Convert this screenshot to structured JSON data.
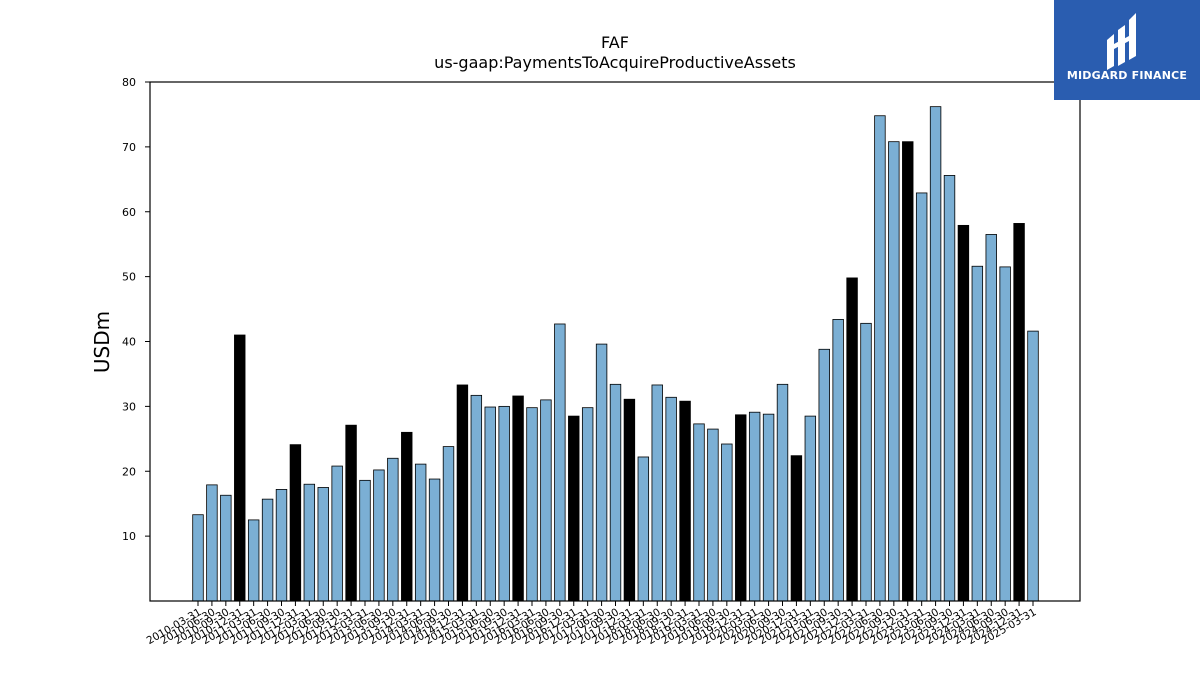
{
  "chart_data": {
    "type": "bar",
    "title": "FAF",
    "subtitle": "us-gaap:PaymentsToAcquireProductiveAssets",
    "ylabel": "USDm",
    "xlabel": "",
    "ylim": [
      0,
      80
    ],
    "yticks": [
      10,
      20,
      30,
      40,
      50,
      60,
      70,
      80
    ],
    "grid": false,
    "categories": [
      "2010-03-31",
      "2010-06-30",
      "2010-09-30",
      "2010-12-31",
      "2011-03-31",
      "2011-06-30",
      "2011-09-30",
      "2011-12-31",
      "2012-03-31",
      "2012-06-30",
      "2012-09-30",
      "2012-12-31",
      "2013-03-31",
      "2013-06-30",
      "2013-09-30",
      "2013-12-31",
      "2014-03-31",
      "2014-06-30",
      "2014-09-30",
      "2014-12-31",
      "2015-03-31",
      "2015-06-30",
      "2015-09-30",
      "2015-12-31",
      "2016-03-31",
      "2016-06-30",
      "2016-09-30",
      "2016-12-31",
      "2017-03-31",
      "2017-06-30",
      "2017-09-30",
      "2017-12-31",
      "2018-03-31",
      "2018-06-30",
      "2018-09-30",
      "2018-12-31",
      "2019-03-31",
      "2019-06-30",
      "2019-09-30",
      "2019-12-31",
      "2020-03-31",
      "2020-06-30",
      "2020-09-30",
      "2020-12-31",
      "2021-03-31",
      "2021-06-30",
      "2021-09-30",
      "2021-12-31",
      "2022-03-31",
      "2022-06-30",
      "2022-09-30",
      "2022-12-31",
      "2023-03-31",
      "2023-06-30",
      "2023-09-30",
      "2023-12-31",
      "2024-03-31",
      "2024-06-30",
      "2024-09-30",
      "2024-12-31",
      "2025-03-31"
    ],
    "values": [
      13.3,
      17.9,
      16.3,
      41.0,
      12.5,
      15.7,
      17.2,
      24.1,
      18.0,
      17.5,
      20.8,
      27.1,
      18.6,
      20.2,
      22.0,
      26.0,
      21.1,
      18.8,
      23.8,
      33.3,
      31.7,
      29.9,
      30.0,
      31.6,
      29.8,
      31.0,
      42.7,
      28.5,
      29.8,
      39.6,
      33.4,
      31.1,
      22.2,
      33.3,
      31.4,
      30.8,
      27.3,
      26.5,
      24.2,
      28.7,
      29.1,
      28.8,
      33.4,
      22.4,
      28.5,
      38.8,
      43.4,
      49.8,
      42.8,
      74.8,
      70.8,
      70.8,
      62.9,
      76.2,
      65.6,
      57.9,
      51.6,
      56.5,
      51.5,
      58.2,
      41.6
    ],
    "colors": {
      "quarter": "#7bafd4",
      "year_end": "#000000",
      "edge": "#000000"
    }
  },
  "logo": {
    "text": "MIDGARD FINANCE",
    "background": "#2a5db0"
  }
}
